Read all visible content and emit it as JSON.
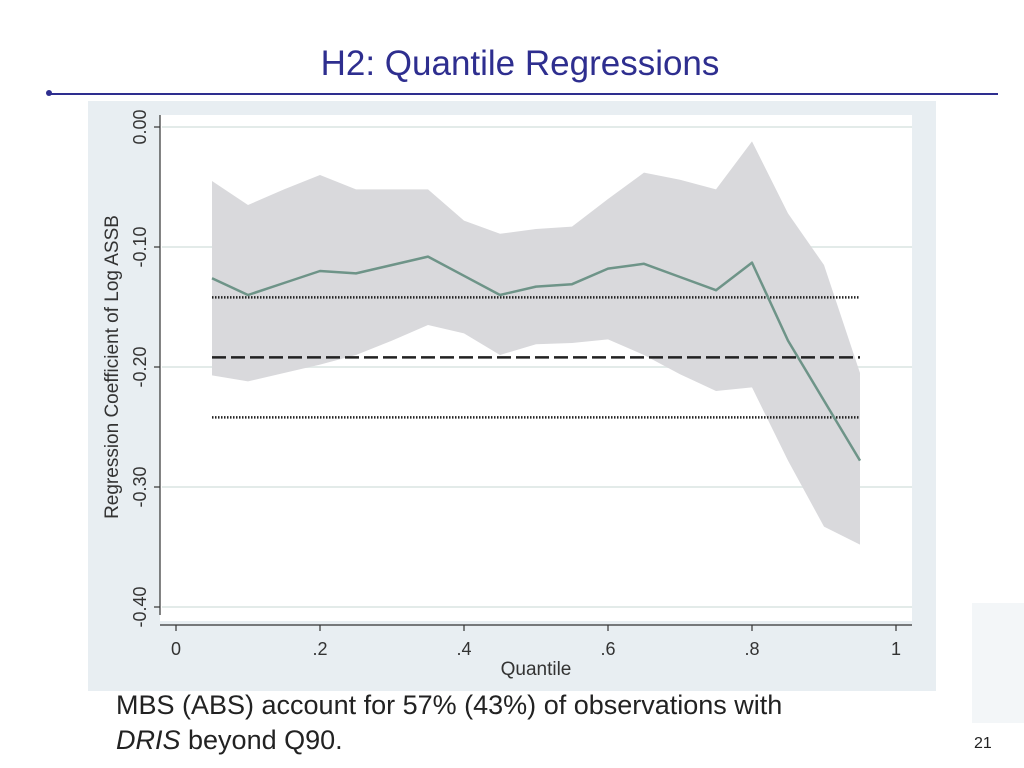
{
  "slide": {
    "title": "H2: Quantile Regressions",
    "caption_part1": "MBS (ABS) account for ",
    "caption_part2": "57% (43%)",
    "caption_part3": " of observations with",
    "caption_italic": "DRIS",
    "caption_part4": " beyond Q90.",
    "slide_number": "21"
  },
  "colors": {
    "title": "#2e2e8f",
    "panel_background": "#e8eef2",
    "plot_background": "#ffffff",
    "confidence_band": "#d9d9dc",
    "quantile_line": "#6e9488",
    "ols_lines": "#222222",
    "gridline": "#e3ebe9"
  },
  "chart_data": {
    "type": "line",
    "title": "",
    "xlabel": "Quantile",
    "ylabel": "Regression Coefficient of Log ASSB",
    "xlim": [
      0,
      1
    ],
    "ylim": [
      -0.4,
      0.0
    ],
    "x_ticks": [
      0,
      0.2,
      0.4,
      0.6,
      0.8,
      1
    ],
    "x_tick_labels": [
      "0",
      ".2",
      ".4",
      ".6",
      ".8",
      "1"
    ],
    "y_ticks": [
      0.0,
      -0.1,
      -0.2,
      -0.3,
      -0.4
    ],
    "y_tick_labels": [
      "0.00",
      "-0.10",
      "-0.20",
      "-0.30",
      "-0.40"
    ],
    "grid": true,
    "legend": "none",
    "x": [
      0.05,
      0.1,
      0.15,
      0.2,
      0.25,
      0.3,
      0.35,
      0.4,
      0.45,
      0.5,
      0.55,
      0.6,
      0.65,
      0.7,
      0.75,
      0.8,
      0.85,
      0.9,
      0.95
    ],
    "series": [
      {
        "values": [
          -0.126,
          -0.14,
          -0.13,
          -0.12,
          -0.122,
          -0.115,
          -0.108,
          -0.124,
          -0.14,
          -0.133,
          -0.131,
          -0.118,
          -0.114,
          -0.125,
          -0.136,
          -0.113,
          -0.178,
          -0.228,
          -0.278
        ],
        "style": "solid"
      }
    ],
    "confidence_band": {
      "upper": [
        -0.045,
        -0.065,
        -0.052,
        -0.04,
        -0.052,
        -0.052,
        -0.052,
        -0.078,
        -0.089,
        -0.085,
        -0.083,
        -0.06,
        -0.038,
        -0.044,
        -0.052,
        -0.012,
        -0.072,
        -0.115,
        -0.205
      ],
      "lower": [
        -0.207,
        -0.212,
        -0.205,
        -0.198,
        -0.19,
        -0.178,
        -0.165,
        -0.172,
        -0.19,
        -0.181,
        -0.18,
        -0.177,
        -0.19,
        -0.206,
        -0.22,
        -0.217,
        -0.278,
        -0.333,
        -0.348
      ]
    },
    "reference_lines": [
      {
        "y": -0.142,
        "style": "dotted",
        "x_range": [
          0.05,
          0.95
        ]
      },
      {
        "y": -0.192,
        "style": "dashed",
        "x_range": [
          0.05,
          0.95
        ]
      },
      {
        "y": -0.242,
        "style": "dotted",
        "x_range": [
          0.05,
          0.95
        ]
      }
    ]
  }
}
